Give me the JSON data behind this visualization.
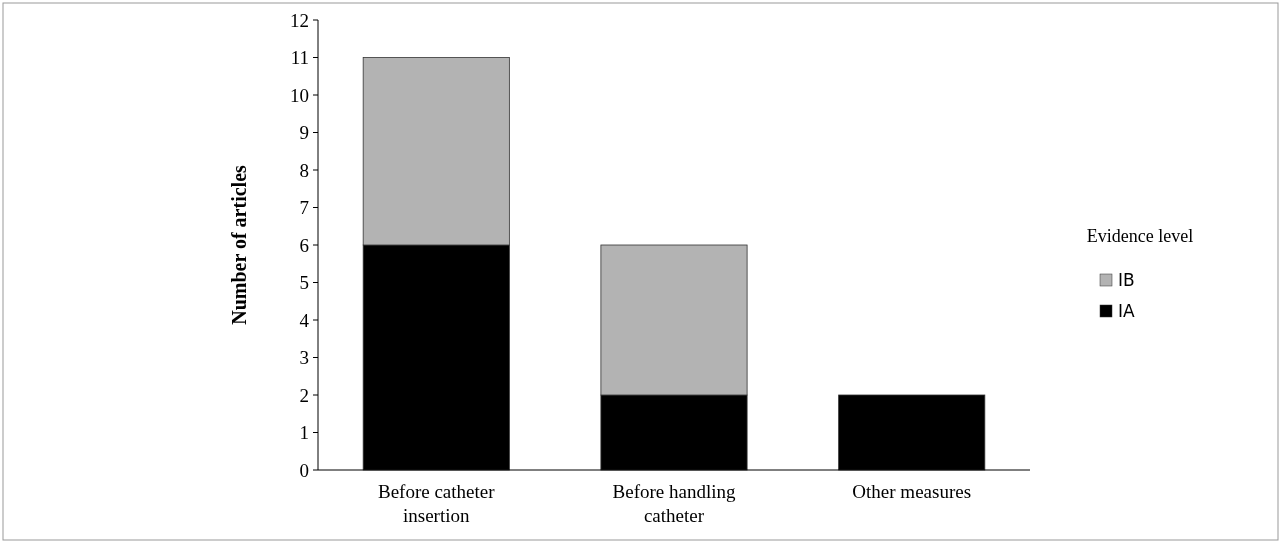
{
  "chart_data": {
    "type": "bar",
    "stacked": true,
    "ylabel": "Number of articles",
    "legend_title": "Evidence level",
    "legend": "right",
    "categories": [
      "Before catheter insertion",
      "Before handling catheter",
      "Other measures"
    ],
    "series": [
      {
        "name": "IA",
        "color": "#000000",
        "values": [
          6,
          2,
          2
        ]
      },
      {
        "name": "IB",
        "color": "#b3b3b3",
        "values": [
          5,
          4,
          0
        ]
      }
    ],
    "ylim": [
      0,
      12
    ],
    "yticks": [
      0,
      1,
      2,
      3,
      4,
      5,
      6,
      7,
      8,
      9,
      10,
      11,
      12
    ]
  }
}
